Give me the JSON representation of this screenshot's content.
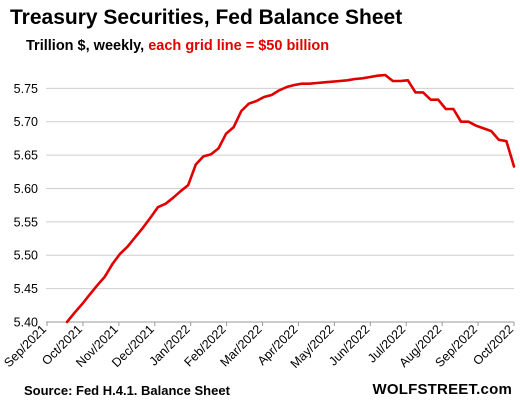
{
  "header": {
    "title": "Treasury Securities, Fed Balance Sheet",
    "subtitle_black": "Trillion $, weekly, ",
    "subtitle_red": "each grid line = $50 billion"
  },
  "footer": {
    "source": "Source: Fed H.4.1. Balance Sheet",
    "brand": "WOLFSTREET.com"
  },
  "colors": {
    "line": "#e00000",
    "grid": "#cfcfcf",
    "subtitle_red": "#e00000"
  },
  "chart_data": {
    "type": "line",
    "title": "Treasury Securities, Fed Balance Sheet",
    "subtitle": "Trillion $, weekly, each grid line = $50 billion",
    "xlabel": "",
    "ylabel": "",
    "ylim": [
      5.4,
      5.77
    ],
    "yticks": [
      5.4,
      5.45,
      5.5,
      5.55,
      5.6,
      5.65,
      5.7,
      5.75
    ],
    "ytick_labels": [
      "5.40",
      "5.45",
      "5.50",
      "5.55",
      "5.60",
      "5.65",
      "5.70",
      "5.75"
    ],
    "xtick_labels": [
      "Sep/2021",
      "Oct/2021",
      "Nov/2021",
      "Dec/2021",
      "Jan/2022",
      "Feb/2022",
      "Mar/2022",
      "Apr/2022",
      "May/2022",
      "Jun/2022",
      "Jul/2022",
      "Aug/2022",
      "Sep/2022",
      "Oct/2022"
    ],
    "grid": true,
    "series": [
      {
        "values": [
          5.4,
          5.414,
          5.427,
          5.441,
          5.455,
          5.468,
          5.487,
          5.502,
          5.513,
          5.527,
          5.541,
          5.556,
          5.572,
          5.577,
          5.586,
          5.596,
          5.605,
          5.636,
          5.648,
          5.651,
          5.66,
          5.682,
          5.692,
          5.716,
          5.727,
          5.731,
          5.737,
          5.74,
          5.747,
          5.752,
          5.755,
          5.757,
          5.757,
          5.758,
          5.759,
          5.76,
          5.761,
          5.762,
          5.764,
          5.765,
          5.767,
          5.769,
          5.77,
          5.761,
          5.761,
          5.762,
          5.744,
          5.744,
          5.733,
          5.733,
          5.719,
          5.719,
          5.7,
          5.7,
          5.694,
          5.69,
          5.686,
          5.673,
          5.671,
          5.633
        ]
      }
    ]
  }
}
